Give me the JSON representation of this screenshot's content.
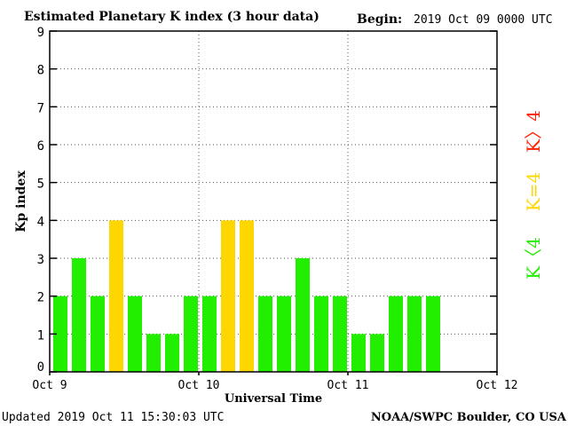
{
  "chart_data": {
    "type": "bar",
    "title": "Estimated Planetary K index (3 hour data)",
    "begin_label": "Begin:",
    "begin_value": "2019 Oct 09 0000 UTC",
    "xlabel": "Universal Time",
    "ylabel": "Kp index",
    "ylim": [
      0,
      9
    ],
    "yticks": [
      "0",
      "1",
      "2",
      "3",
      "4",
      "5",
      "6",
      "7",
      "8",
      "9"
    ],
    "xticks": [
      "Oct 9",
      "Oct 10",
      "Oct 11",
      "Oct 12"
    ],
    "bar_slots": 24,
    "values": [
      2,
      3,
      2,
      4,
      2,
      1,
      1,
      2,
      2,
      4,
      4,
      2,
      2,
      3,
      2,
      2,
      1,
      1,
      2,
      2,
      2
    ],
    "colors": {
      "below_4": "#22ee00",
      "equal_4": "#ffd700",
      "above_4": "#ff2200",
      "frame": "#000000",
      "grid": "#555555"
    },
    "legend": {
      "above": "K〉4",
      "equal": "K=4",
      "below": "K〈4"
    },
    "grid": true,
    "footer_left": "Updated 2019 Oct 11 15:30:03 UTC",
    "footer_right": "NOAA/SWPC Boulder, CO USA"
  }
}
